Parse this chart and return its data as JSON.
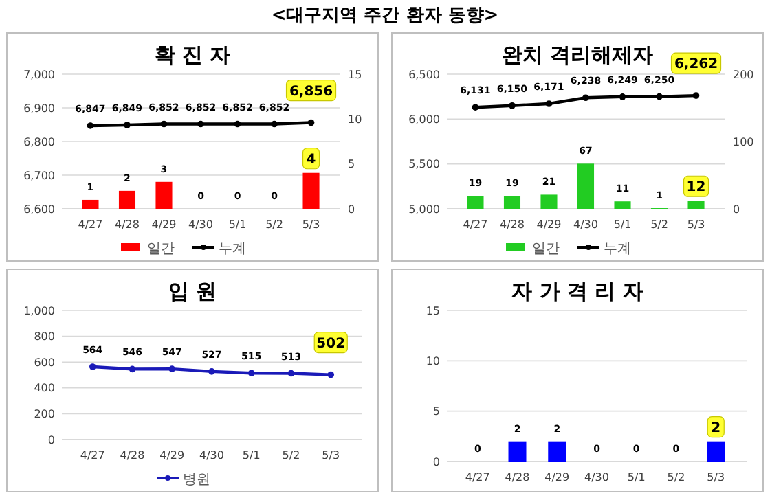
{
  "chart_data": [
    {
      "type": "bar",
      "title": "확 진 자",
      "annotations": [
        "<대구지역 주간 환자 동향>"
      ],
      "categories": [
        "4/27",
        "4/28",
        "4/29",
        "4/30",
        "5/1",
        "5/2",
        "5/3"
      ],
      "series": [
        {
          "name": "일간",
          "type": "bar",
          "axis": "y2",
          "color": "#ff0000",
          "values": [
            1,
            2,
            3,
            0,
            0,
            0,
            4
          ]
        },
        {
          "name": "누계",
          "type": "line",
          "color": "#000000",
          "values": [
            6847,
            6849,
            6852,
            6852,
            6852,
            6852,
            6856
          ],
          "value_labels": [
            "6,847",
            "6,849",
            "6,852",
            "6,852",
            "6,852",
            "6,852",
            "6,856"
          ]
        }
      ],
      "ylim": [
        6600,
        7000
      ],
      "yticks": [
        {
          "value": 6600,
          "label": "6,600"
        },
        {
          "value": 6700,
          "label": "6,700"
        },
        {
          "value": 6800,
          "label": "6,800"
        },
        {
          "value": 6900,
          "label": "6,900"
        },
        {
          "value": 7000,
          "label": "7,000"
        }
      ],
      "y2lim": [
        0,
        15
      ],
      "y2ticks": [
        0,
        5,
        10,
        15
      ],
      "data_labels": true,
      "grid": "y",
      "legend": "bottom",
      "marker": "circle",
      "line_style": "solid"
    },
    {
      "type": "bar",
      "title": "완치 격리해제자",
      "categories": [
        "4/27",
        "4/28",
        "4/29",
        "4/30",
        "5/1",
        "5/2",
        "5/3"
      ],
      "series": [
        {
          "name": "일간",
          "type": "bar",
          "axis": "y2",
          "color": "#22cc22",
          "values": [
            19,
            19,
            21,
            67,
            11,
            1,
            12
          ]
        },
        {
          "name": "누계",
          "type": "line",
          "color": "#000000",
          "values": [
            6131,
            6150,
            6171,
            6238,
            6249,
            6250,
            6262
          ],
          "value_labels": [
            "6,131",
            "6,150",
            "6,171",
            "6,238",
            "6,249",
            "6,250",
            "6,262"
          ]
        }
      ],
      "ylim": [
        5000,
        6500
      ],
      "yticks": [
        {
          "value": 5000,
          "label": "5,000"
        },
        {
          "value": 5500,
          "label": "5,500"
        },
        {
          "value": 6000,
          "label": "6,000"
        },
        {
          "value": 6500,
          "label": "6,500"
        }
      ],
      "y2lim": [
        0,
        200
      ],
      "y2ticks": [
        0,
        100,
        200
      ],
      "data_labels": true,
      "grid": "y",
      "legend": "bottom",
      "marker": "circle",
      "line_style": "solid"
    },
    {
      "type": "line",
      "title": "입 원",
      "categories": [
        "4/27",
        "4/28",
        "4/29",
        "4/30",
        "5/1",
        "5/2",
        "5/3"
      ],
      "series": [
        {
          "name": "병원",
          "color": "#1a1ab8",
          "values": [
            564,
            546,
            547,
            527,
            515,
            513,
            502
          ]
        }
      ],
      "ylim": [
        0,
        1000
      ],
      "yticks": [
        0,
        200,
        400,
        600,
        800,
        {
          "value": 1000,
          "label": "1,000"
        }
      ],
      "data_labels": true,
      "grid": "y",
      "legend": "bottom",
      "marker": "circle",
      "line_style": "solid"
    },
    {
      "type": "bar",
      "title": "자 가 격 리 자",
      "categories": [
        "4/27",
        "4/28",
        "4/29",
        "4/30",
        "5/1",
        "5/2",
        "5/3"
      ],
      "values": [
        0,
        2,
        2,
        0,
        0,
        0,
        2
      ],
      "color": "#0000ff",
      "ylim": [
        0,
        15
      ],
      "yticks": [
        0,
        5,
        10,
        15
      ],
      "data_labels": true,
      "grid": "y"
    }
  ]
}
